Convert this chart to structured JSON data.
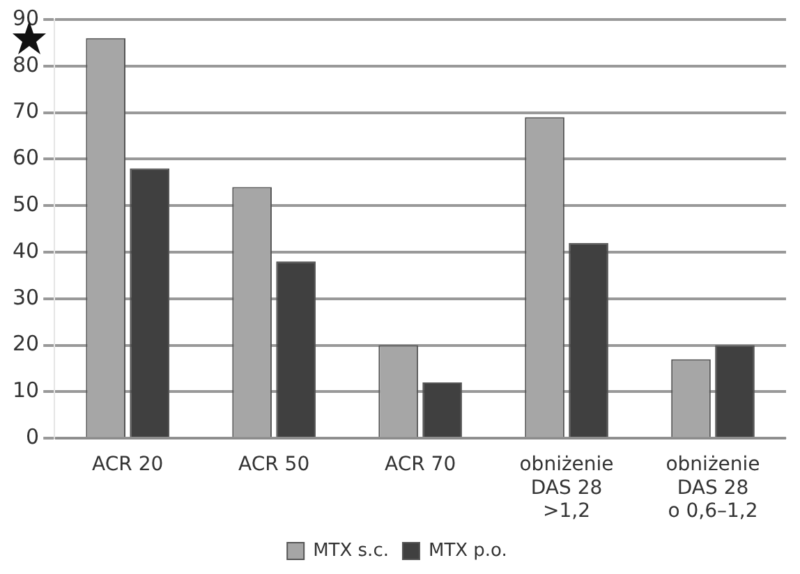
{
  "chart_data": {
    "type": "bar",
    "categories": [
      "ACR 20",
      "ACR 50",
      "ACR 70",
      "obniżenie\nDAS 28\n>1,2",
      "obniżenie\nDAS 28\no 0,6–1,2"
    ],
    "series": [
      {
        "name": "MTX s.c.",
        "color": "#a6a6a6",
        "values": [
          86,
          54,
          20,
          69,
          17
        ]
      },
      {
        "name": "MTX p.o.",
        "color": "#404040",
        "values": [
          58,
          38,
          12,
          42,
          20
        ]
      }
    ],
    "ylim": [
      0,
      90
    ],
    "yticks": [
      0,
      10,
      20,
      30,
      40,
      50,
      60,
      70,
      80,
      90
    ],
    "grid": "y",
    "legend": "bottom"
  }
}
